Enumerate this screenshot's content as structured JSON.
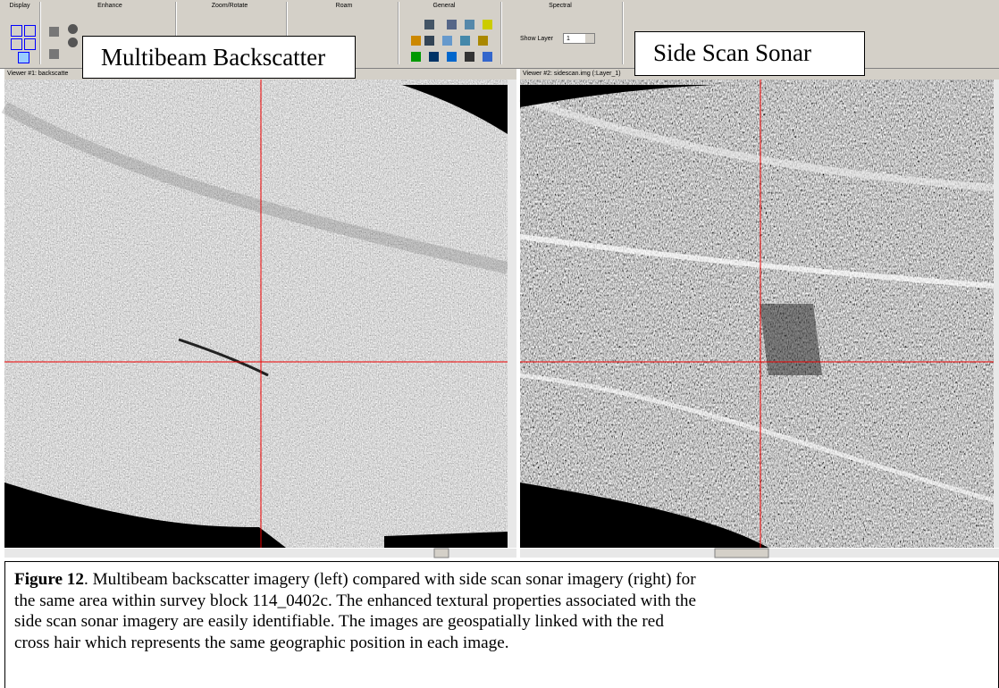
{
  "toolbar": {
    "groups": [
      "Display",
      "Enhance",
      "Zoom/Rotate",
      "Roam",
      "General",
      "Spectral"
    ],
    "show_layer_label": "Show Layer",
    "show_layer_value": "1"
  },
  "viewers": [
    {
      "title": "Viewer #1: backscatte",
      "overlay_label": "Multibeam Backscatter"
    },
    {
      "title": "Viewer #2: sidescan.img (:Layer_1)",
      "overlay_label": "Side Scan Sonar"
    }
  ],
  "caption": {
    "label": "Figure 12",
    "lines": [
      ".  Multibeam backscatter imagery (left) compared with side scan sonar imagery (right) for",
      "the same area within survey block 114_0402c.  The enhanced textural properties associated with the",
      "side scan sonar imagery are easily identifiable.  The images are geospatially linked with the red",
      "cross hair which represents the same geographic position in each image."
    ]
  }
}
